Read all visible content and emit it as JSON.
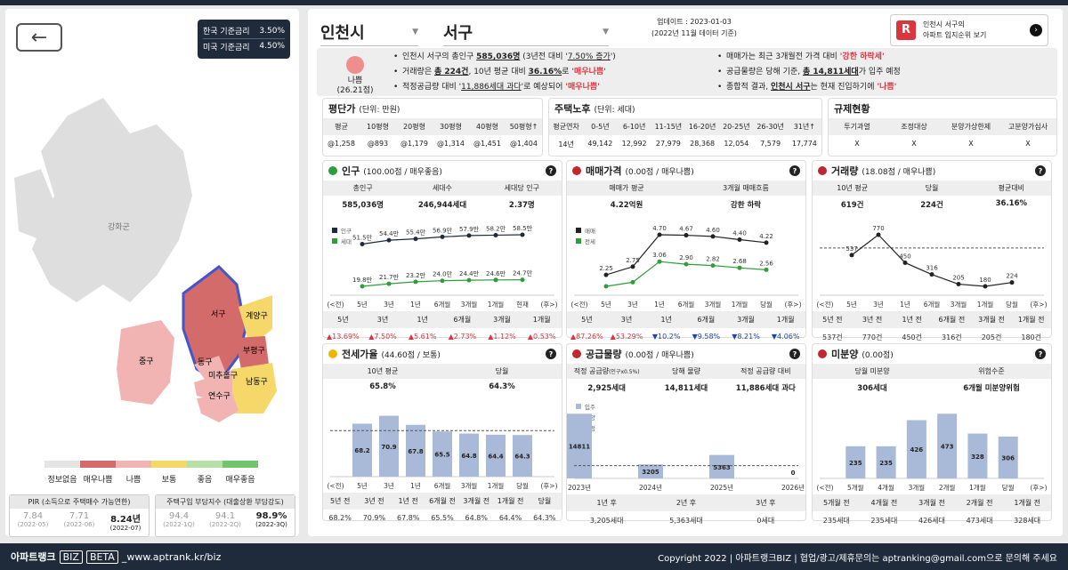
{
  "rates": [
    {
      "label": "한국 기준금리",
      "value": "3.50%"
    },
    {
      "label": "미국 기준금리",
      "value": "4.50%"
    }
  ],
  "map": {
    "regions": [
      "강화군",
      "서구",
      "계양구",
      "부평구",
      "중구",
      "동구",
      "미추홀구",
      "남동구",
      "연수구"
    ]
  },
  "legend": {
    "colors": [
      "#e4e4e4",
      "#d46b6b",
      "#f2b3b3",
      "#f6d76a",
      "#b7e0a6",
      "#71c56a"
    ],
    "labels": [
      "정보없음",
      "매우나쁨",
      "나쁨",
      "보통",
      "좋음",
      "매우좋음"
    ]
  },
  "pir": {
    "title": "PIR (소득으로 주택매수 가능연한)",
    "values": [
      "7.84",
      "7.71",
      "8.24년"
    ],
    "dates": [
      "(2022-05)",
      "(2022-06)",
      "(2022-07)"
    ]
  },
  "hai": {
    "title": "주택구입 부담지수 (대출상환 부담강도)",
    "values": [
      "94.4",
      "94.1",
      "98.9%"
    ],
    "dates": [
      "(2022-1Q)",
      "(2022-2Q)",
      "(2022-3Q)"
    ]
  },
  "header": {
    "city": "인천시",
    "district": "서구",
    "update": "업데이트 : 2023-01-03",
    "basis": "(2022년 11월 데이터 기준)",
    "promo1": "인천시 서구의",
    "promo2": "아파트 입지순위 보기",
    "logo": "R"
  },
  "summary": {
    "grade": "나쁨",
    "score": "(26.21점)",
    "l1a": "인천시 서구의 총인구 ",
    "l1b": "585,036명",
    "l1c": " (3년전 대비 '",
    "l1d": "7.50% 증가",
    "l1e": "')",
    "l2a": "거래량은 ",
    "l2b": "총 224건",
    "l2c": ", 10년 평균 대비 ",
    "l2d": "36.16%",
    "l2e": "로 ",
    "l2f": "'매우나쁨'",
    "l3a": "적정공급량 대비 '",
    "l3b": "11,886세대 과다",
    "l3c": "'로 예상되어 ",
    "l3d": "'매우나쁨'",
    "r1a": "매매가는 최근 3개월전 가격 대비 ",
    "r1b": "'강한 하락세'",
    "r2a": "공급물량은 당해 기준, ",
    "r2b": "총 14,811세대",
    "r2c": "가 입주 예정",
    "r3a": "종합적 결과, ",
    "r3b": "인천시 서구",
    "r3c": "는 현재 진입하기에 ",
    "r3d": "'나쁨'"
  },
  "price": {
    "title": "평단가",
    "unit": "(단위: 만원)",
    "heads": [
      "평균",
      "10평형",
      "20평형",
      "30평형",
      "40평형",
      "50평형↑"
    ],
    "vals": [
      "@1,258",
      "@893",
      "@1,179",
      "@1,314",
      "@1,451",
      "@1,404"
    ]
  },
  "age": {
    "title": "주택노후",
    "unit": "(단위: 세대)",
    "heads": [
      "평균연차",
      "0-5년",
      "6-10년",
      "11-15년",
      "16-20년",
      "20-25년",
      "26-30년",
      "31년↑"
    ],
    "vals": [
      "14년",
      "49,142",
      "12,992",
      "27,979",
      "28,368",
      "12,054",
      "7,579",
      "17,774"
    ]
  },
  "reg": {
    "title": "규제현황",
    "heads": [
      "투기과열",
      "조정대상",
      "분양가상한제",
      "고분양가심사"
    ],
    "vals": [
      "X",
      "X",
      "X",
      "X"
    ]
  },
  "pop": {
    "title": "인구",
    "score": "(100.00점 / 매우좋음)",
    "color": "#2e9e3b",
    "sh": [
      "총인구",
      "세대수",
      "세대당 인구"
    ],
    "sv": [
      "585,036명",
      "246,944세대",
      "2.37명"
    ],
    "legend": [
      "인구",
      "세대"
    ],
    "xt": [
      "(<전)",
      "5년",
      "3년",
      "1년",
      "6개월",
      "3개월",
      "1개월",
      "현재",
      "(후>)"
    ],
    "ch": [
      "5년",
      "3년",
      "1년",
      "6개월",
      "3개월",
      "1개월"
    ],
    "cv": [
      "▲13.69%",
      "▲7.50%",
      "▲5.61%",
      "▲2.73%",
      "▲1.12%",
      "▲0.53%"
    ]
  },
  "sale": {
    "title": "매매가격",
    "score": "(0.00점 / 매우나쁨)",
    "color": "#c1272d",
    "sh": [
      "매매가 평균",
      "3개월 매매흐름"
    ],
    "sv": [
      "4.22억원",
      "강한 하락"
    ],
    "legend": [
      "매매",
      "전세"
    ],
    "xt": [
      "(<전)",
      "5년",
      "3년",
      "1년",
      "6개월",
      "3개월",
      "1개월",
      "당월",
      "(후>)"
    ],
    "ch": [
      "5년",
      "3년",
      "1년",
      "6개월",
      "3개월",
      "1개월"
    ],
    "cv": [
      "▲87.26%",
      "▲53.29%",
      "▼10.2%",
      "▼9.58%",
      "▼8.21%",
      "▼4.06%"
    ]
  },
  "vol": {
    "title": "거래량",
    "score": "(18.08점 / 매우나쁨)",
    "color": "#c1272d",
    "sh": [
      "10년 평균",
      "당월",
      "평균대비"
    ],
    "sv": [
      "619건",
      "224건",
      "36.16%"
    ],
    "xt": [
      "(<전)",
      "5년",
      "3년",
      "1년",
      "6개월",
      "3개월",
      "1개월",
      "당월",
      "(후>)"
    ],
    "ch": [
      "5년 전",
      "3년 전",
      "1년 전",
      "6개월 전",
      "3개월 전",
      "1개월 전"
    ],
    "cv": [
      "537건",
      "770건",
      "450건",
      "316건",
      "205건",
      "180건"
    ]
  },
  "jeonse": {
    "title": "전세가율",
    "score": "(44.60점 / 보통)",
    "color": "#f2b600",
    "sh": [
      "10년 평균",
      "당월"
    ],
    "sv": [
      "65.8%",
      "64.3%"
    ],
    "xt": [
      "(<전)",
      "5년",
      "3년",
      "1년",
      "6개월",
      "3개월",
      "1개월",
      "당월",
      "(후>)"
    ],
    "ch": [
      "5년 전",
      "3년 전",
      "1년 전",
      "6개월 전",
      "3개월 전",
      "1개월 전",
      "당월"
    ],
    "cv": [
      "68.2%",
      "70.9%",
      "67.8%",
      "65.5%",
      "64.8%",
      "64.4%",
      "64.3%"
    ]
  },
  "supply": {
    "title": "공급물량",
    "score": "(0.00점 / 매우나쁨)",
    "color": "#c1272d",
    "sh": [
      "적정 공급량",
      "당해 물량",
      "적정 공급량 대비"
    ],
    "shnote": "(인구x0.5%)",
    "sv": [
      "2,925세대",
      "14,811세대",
      "11,886세대 과다"
    ],
    "legend": [
      "입주",
      "분양",
      "적정"
    ],
    "xt": [
      "2023년",
      "2024년",
      "2025년",
      "2026년"
    ],
    "ch": [
      "1년 후",
      "2년 후",
      "3년 후"
    ],
    "cv": [
      "3,205세대",
      "5,363세대",
      "0세대"
    ]
  },
  "unsold": {
    "title": "미분양",
    "score": "(0.00점)",
    "color": "#c1272d",
    "sh": [
      "당월 미분양",
      "위험수준"
    ],
    "sv": [
      "306세대",
      "6개월 미분양위험"
    ],
    "xt": [
      "(<전)",
      "5개월",
      "4개월",
      "3개월",
      "2개월",
      "1개월",
      "당월",
      "(후>)"
    ],
    "ch": [
      "5개월 전",
      "4개월 전",
      "3개월 전",
      "2개월 전",
      "1개월 전"
    ],
    "cv": [
      "235세대",
      "235세대",
      "426세대",
      "473세대",
      "328세대"
    ]
  },
  "chart_data": [
    {
      "type": "line",
      "title": "인구",
      "x": [
        "5년",
        "3년",
        "1년",
        "6개월",
        "3개월",
        "1개월",
        "현재"
      ],
      "series": [
        {
          "name": "인구",
          "values": [
            "51.5만",
            "54.4만",
            "55.4만",
            "56.9만",
            "57.9만",
            "58.2만",
            "58.5만"
          ],
          "num": [
            51.5,
            54.4,
            55.4,
            56.9,
            57.9,
            58.2,
            58.5
          ]
        },
        {
          "name": "세대",
          "values": [
            "19.8만",
            "21.7만",
            "23.2만",
            "24.0만",
            "24.4만",
            "24.6만",
            "24.7만"
          ],
          "num": [
            19.8,
            21.7,
            23.2,
            24.0,
            24.4,
            24.6,
            24.7
          ]
        }
      ]
    },
    {
      "type": "line",
      "title": "매매가격",
      "x": [
        "5년",
        "3년",
        "1년",
        "6개월",
        "3개월",
        "1개월",
        "당월"
      ],
      "series": [
        {
          "name": "매매",
          "values": [
            "2.25",
            "2.75",
            "4.70",
            "4.67",
            "4.60",
            "4.40",
            "4.22"
          ],
          "num": [
            2.25,
            2.75,
            4.7,
            4.67,
            4.6,
            4.4,
            4.22
          ]
        },
        {
          "name": "전세",
          "values": [
            "",
            "",
            "3.06",
            "2.90",
            "2.82",
            "2.68",
            "2.56"
          ],
          "num": [
            1.55,
            1.8,
            3.06,
            2.9,
            2.82,
            2.68,
            2.56
          ]
        }
      ]
    },
    {
      "type": "line",
      "title": "거래량",
      "x": [
        "5년",
        "3년",
        "1년",
        "6개월",
        "3개월",
        "1개월",
        "당월"
      ],
      "series": [
        {
          "name": "거래량",
          "values": [
            "537",
            "770",
            "450",
            "316",
            "205",
            "180",
            "224"
          ],
          "num": [
            537,
            770,
            450,
            316,
            205,
            180,
            224
          ]
        }
      ],
      "reference": 619
    },
    {
      "type": "bar",
      "title": "전세가율",
      "categories": [
        "5년",
        "3년",
        "1년",
        "6개월",
        "3개월",
        "1개월",
        "당월"
      ],
      "values": [
        68.2,
        70.9,
        67.8,
        65.5,
        64.8,
        64.4,
        64.3
      ],
      "reference": 65.8
    },
    {
      "type": "bar",
      "title": "공급물량",
      "categories": [
        "2023년",
        "2024년",
        "2025년",
        "2026년"
      ],
      "values": [
        14811,
        3205,
        5363,
        0
      ],
      "reference": 2925
    },
    {
      "type": "bar",
      "title": "미분양",
      "categories": [
        "5개월",
        "4개월",
        "3개월",
        "2개월",
        "1개월",
        "당월"
      ],
      "values": [
        235,
        235,
        426,
        473,
        328,
        306
      ]
    }
  ]
}
